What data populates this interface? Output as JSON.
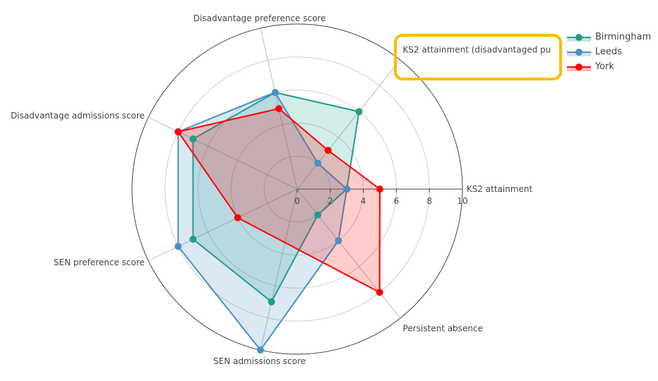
{
  "chart_data": {
    "type": "radar",
    "categories": [
      "KS2 attainment",
      "KS2 attainment (disadvantaged pu",
      "Disadvantage preference score",
      "Disadvantage admissions score",
      "SEN preference score",
      "SEN admissions score",
      "Persistent absence"
    ],
    "radial_range": [
      0,
      10
    ],
    "radial_ticks": [
      "0",
      "2",
      "4",
      "6",
      "8",
      "10"
    ],
    "grid": true,
    "legend_position": "top-right",
    "series": [
      {
        "name": "Birmingham",
        "color": "#1f9e89",
        "values": [
          3,
          6,
          6,
          7,
          7,
          7,
          2
        ]
      },
      {
        "name": "Leeds",
        "color": "#4a8fc4",
        "values": [
          3,
          2,
          6,
          8,
          8,
          10,
          4
        ]
      },
      {
        "name": "York",
        "color": "#ff0000",
        "values": [
          5,
          3,
          5,
          8,
          4,
          null,
          8
        ]
      }
    ],
    "highlight": {
      "target": "KS2 attainment (disadvantaged pu",
      "color": "#f9bc00"
    }
  }
}
